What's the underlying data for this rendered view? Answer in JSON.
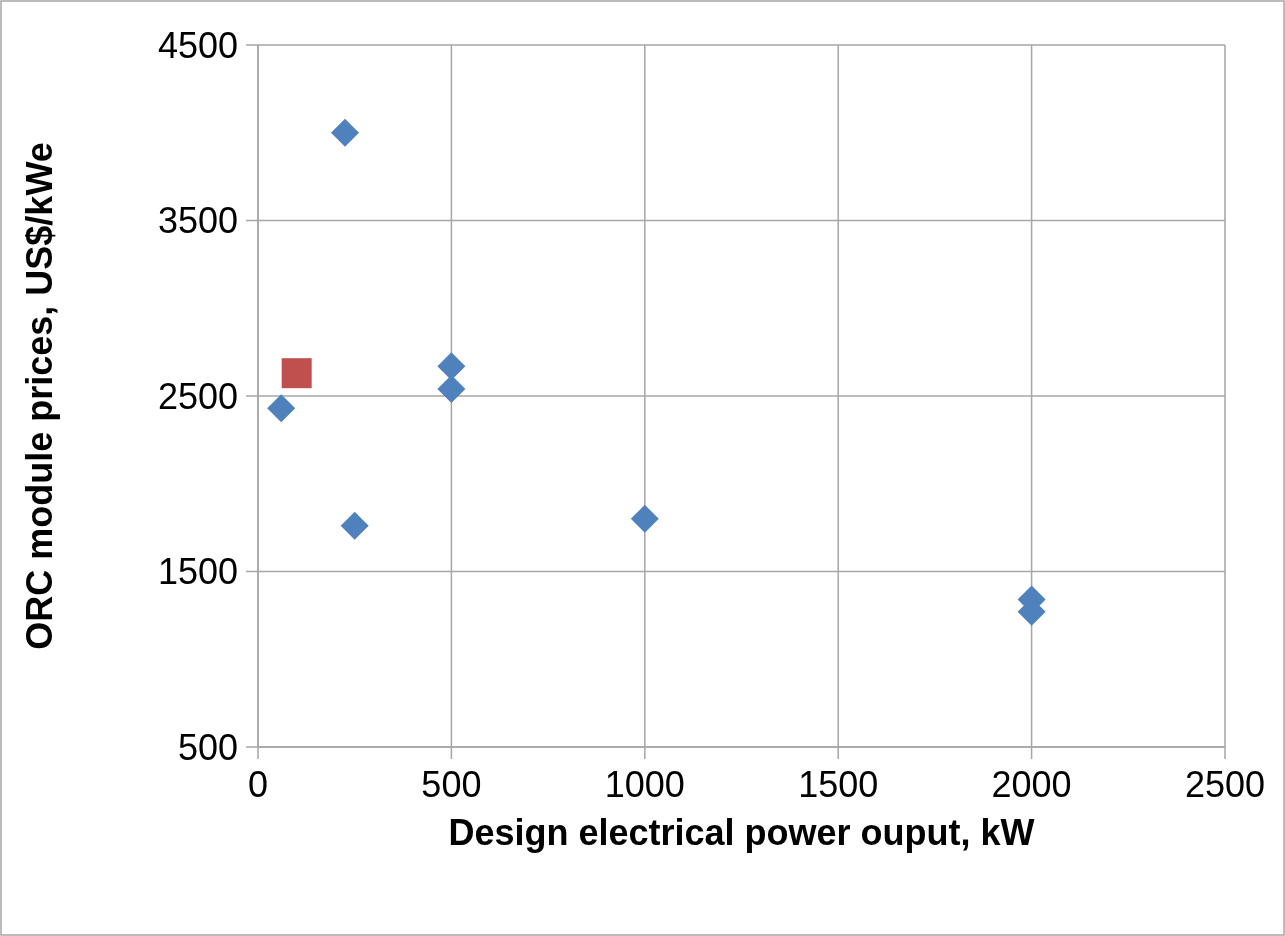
{
  "chart_data": {
    "type": "scatter",
    "xlabel": "Design electrical power ouput, kW",
    "ylabel": "ORC module prices, US$/kWe",
    "xlim": [
      0,
      2500
    ],
    "xticks": [
      0,
      500,
      1000,
      1500,
      2000,
      2500
    ],
    "ylim": [
      500,
      4500
    ],
    "yticks": [
      500,
      1500,
      2500,
      3500,
      4500
    ],
    "grid": true,
    "series": [
      {
        "color": "#4f81bd",
        "marker": "diamond",
        "x": [
          225,
          60,
          250,
          500,
          500,
          1000,
          2000,
          2000
        ],
        "values": [
          4000,
          2430,
          1760,
          2670,
          2540,
          1800,
          1340,
          1270
        ]
      },
      {
        "color": "#c0504d",
        "marker": "square",
        "x": [
          100
        ],
        "values": [
          2630
        ]
      }
    ]
  }
}
